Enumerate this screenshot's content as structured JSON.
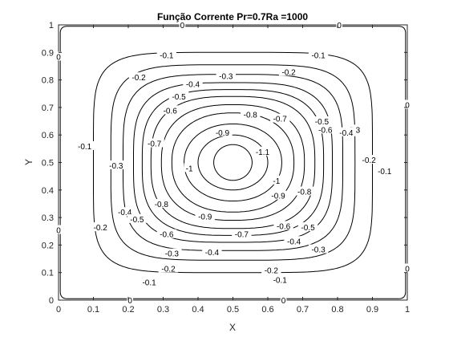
{
  "chart_data": {
    "type": "contour",
    "title": "Função Corrente Pr=0.7Ra =1000",
    "xlabel": "X",
    "ylabel": "Y",
    "xlim": [
      0,
      1
    ],
    "ylim": [
      0,
      1
    ],
    "x_ticks": [
      "0",
      "0.1",
      "0.2",
      "0.3",
      "0.4",
      "0.5",
      "0.6",
      "0.7",
      "0.8",
      "0.9",
      "1"
    ],
    "y_ticks": [
      "0",
      "0.1",
      "0.2",
      "0.3",
      "0.4",
      "0.5",
      "0.6",
      "0.7",
      "0.8",
      "0.9",
      "1"
    ],
    "center": [
      0.5,
      0.5
    ],
    "levels": [
      {
        "value": -0.1,
        "label": "-0.1",
        "a": 0.4,
        "b": 0.4,
        "n": 5.5
      },
      {
        "value": -0.2,
        "label": "-0.2",
        "a": 0.35,
        "b": 0.355,
        "n": 4.6
      },
      {
        "value": -0.3,
        "label": "-0.3",
        "a": 0.315,
        "b": 0.32,
        "n": 4.0
      },
      {
        "value": -0.4,
        "label": "-0.4",
        "a": 0.285,
        "b": 0.29,
        "n": 3.5
      },
      {
        "value": -0.5,
        "label": "-0.5",
        "a": 0.26,
        "b": 0.265,
        "n": 3.1
      },
      {
        "value": -0.6,
        "label": "-0.6",
        "a": 0.235,
        "b": 0.24,
        "n": 2.8
      },
      {
        "value": -0.7,
        "label": "-0.7",
        "a": 0.205,
        "b": 0.21,
        "n": 2.5
      },
      {
        "value": -0.8,
        "label": "-0.8",
        "a": 0.175,
        "b": 0.18,
        "n": 2.3
      },
      {
        "value": -0.9,
        "label": "-0.9",
        "a": 0.14,
        "b": 0.14,
        "n": 2.1
      },
      {
        "value": -1.0,
        "label": "-1",
        "a": 0.1,
        "b": 0.1,
        "n": 2.0
      },
      {
        "value": -1.1,
        "label": "-1.1",
        "a": 0.055,
        "b": 0.065,
        "n": 2.0
      }
    ],
    "labels": [
      {
        "text": "-0.1",
        "x": 0.31,
        "y": 0.89
      },
      {
        "text": "-0.1",
        "x": 0.745,
        "y": 0.89
      },
      {
        "text": "-0.1",
        "x": 0.075,
        "y": 0.56
      },
      {
        "text": "-0.1",
        "x": 0.935,
        "y": 0.47
      },
      {
        "text": "-0.1",
        "x": 0.26,
        "y": 0.065
      },
      {
        "text": "-0.1",
        "x": 0.635,
        "y": 0.075
      },
      {
        "text": "-0.2",
        "x": 0.23,
        "y": 0.81
      },
      {
        "text": "-0.2",
        "x": 0.66,
        "y": 0.83
      },
      {
        "text": "-0.2",
        "x": 0.12,
        "y": 0.265
      },
      {
        "text": "-0.2",
        "x": 0.89,
        "y": 0.51
      },
      {
        "text": "-0.2",
        "x": 0.315,
        "y": 0.115
      },
      {
        "text": "-0.2",
        "x": 0.61,
        "y": 0.11
      },
      {
        "text": "-0.3",
        "x": 0.48,
        "y": 0.815
      },
      {
        "text": "-0.3",
        "x": 0.165,
        "y": 0.49
      },
      {
        "text": "-0.3",
        "x": 0.845,
        "y": 0.62
      },
      {
        "text": "-0.3",
        "x": 0.325,
        "y": 0.17
      },
      {
        "text": "-0.3",
        "x": 0.745,
        "y": 0.185
      },
      {
        "text": "-0.4",
        "x": 0.385,
        "y": 0.785
      },
      {
        "text": "-0.4",
        "x": 0.19,
        "y": 0.32
      },
      {
        "text": "-0.4",
        "x": 0.825,
        "y": 0.61
      },
      {
        "text": "-0.4",
        "x": 0.44,
        "y": 0.175
      },
      {
        "text": "-0.4",
        "x": 0.675,
        "y": 0.215
      },
      {
        "text": "-0.5",
        "x": 0.345,
        "y": 0.74
      },
      {
        "text": "-0.5",
        "x": 0.225,
        "y": 0.295
      },
      {
        "text": "-0.5",
        "x": 0.715,
        "y": 0.265
      },
      {
        "text": "-0.5",
        "x": 0.755,
        "y": 0.65
      },
      {
        "text": "-0.6",
        "x": 0.32,
        "y": 0.69
      },
      {
        "text": "-0.6",
        "x": 0.31,
        "y": 0.24
      },
      {
        "text": "-0.6",
        "x": 0.645,
        "y": 0.27
      },
      {
        "text": "-0.6",
        "x": 0.765,
        "y": 0.62
      },
      {
        "text": "-0.7",
        "x": 0.275,
        "y": 0.57
      },
      {
        "text": "-0.7",
        "x": 0.525,
        "y": 0.24
      },
      {
        "text": "-0.7",
        "x": 0.635,
        "y": 0.66
      },
      {
        "text": "-0.8",
        "x": 0.55,
        "y": 0.675
      },
      {
        "text": "-0.8",
        "x": 0.295,
        "y": 0.35
      },
      {
        "text": "-0.8",
        "x": 0.705,
        "y": 0.395
      },
      {
        "text": "-0.9",
        "x": 0.47,
        "y": 0.61
      },
      {
        "text": "-0.9",
        "x": 0.42,
        "y": 0.305
      },
      {
        "text": "-0.9",
        "x": 0.63,
        "y": 0.38
      },
      {
        "text": "-1",
        "x": 0.375,
        "y": 0.48
      },
      {
        "text": "-1",
        "x": 0.625,
        "y": 0.435
      },
      {
        "text": "-1.1",
        "x": 0.585,
        "y": 0.54
      },
      {
        "text": "0",
        "x": 0.355,
        "y": 1.0
      },
      {
        "text": "0",
        "x": 0.805,
        "y": 1.0
      },
      {
        "text": "0",
        "x": 0.0,
        "y": 0.885
      },
      {
        "text": "0",
        "x": 0.0,
        "y": 0.255
      },
      {
        "text": "0",
        "x": 1.0,
        "y": 0.71
      },
      {
        "text": "0",
        "x": 1.0,
        "y": 0.115
      },
      {
        "text": "0",
        "x": 0.205,
        "y": 0.0
      },
      {
        "text": "0",
        "x": 0.645,
        "y": 0.0
      }
    ]
  }
}
